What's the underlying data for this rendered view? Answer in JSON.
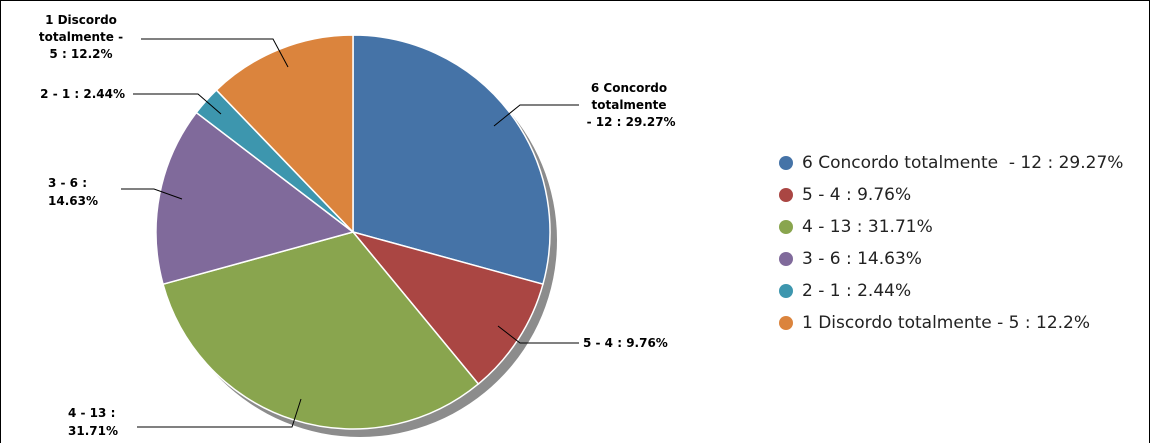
{
  "chart_data": {
    "type": "pie",
    "title": "",
    "slices": [
      {
        "label": "6 Concordo totalmente  - 12 : 29.27%",
        "value": 12,
        "percent": 29.27,
        "color": "#4573a7",
        "label_lines": [
          "6 Concordo",
          "totalmente",
          " - 12 : 29.27%"
        ]
      },
      {
        "label": "5 - 4 : 9.76%",
        "value": 4,
        "percent": 9.76,
        "color": "#aa4643",
        "label_lines": [
          "5 - 4 : 9.76%"
        ]
      },
      {
        "label": "4 - 13 : 31.71%",
        "value": 13,
        "percent": 31.71,
        "color": "#89a54e",
        "label_lines": [
          "4 - 13 :",
          "31.71%"
        ]
      },
      {
        "label": "3 - 6 : 14.63%",
        "value": 6,
        "percent": 14.63,
        "color": "#806a9b",
        "label_lines": [
          "3 - 6 :",
          "14.63%"
        ]
      },
      {
        "label": "2 - 1 : 2.44%",
        "value": 1,
        "percent": 2.44,
        "color": "#3d96ae",
        "label_lines": [
          "2 - 1 : 2.44%"
        ]
      },
      {
        "label": "1 Discordo totalmente - 5 : 12.2%",
        "value": 5,
        "percent": 12.2,
        "color": "#db843d",
        "label_lines": [
          "1 Discordo",
          "totalmente -",
          "5 : 12.2%"
        ]
      }
    ],
    "legend_position": "right"
  }
}
